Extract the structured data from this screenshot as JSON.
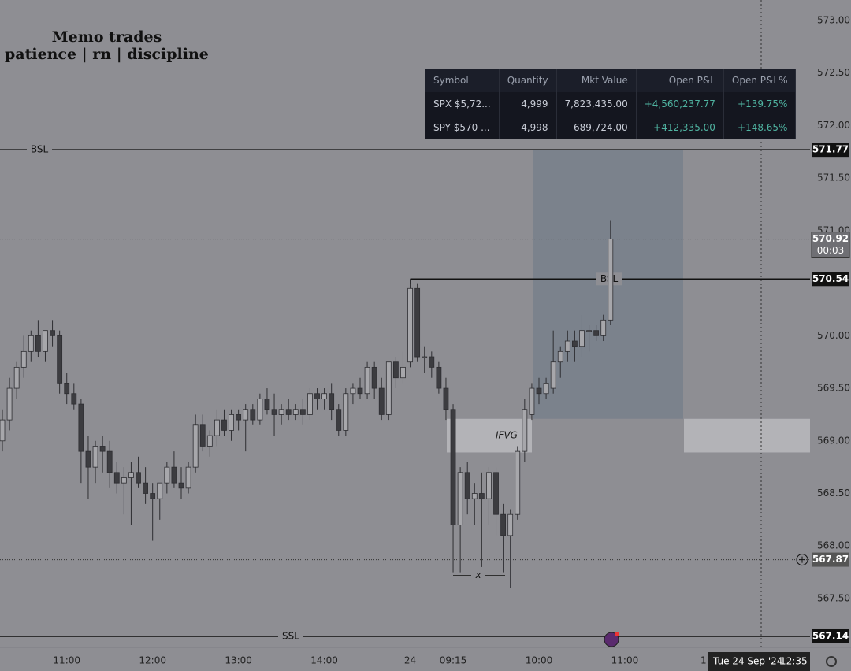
{
  "header": {
    "title": "Memo trades",
    "subtitle": "patience | rn | discipline"
  },
  "positions_table": {
    "columns": [
      "Symbol",
      "Quantity",
      "Mkt Value",
      "Open P&L",
      "Open P&L%"
    ],
    "rows": [
      [
        "SPX $5,72...",
        "4,999",
        "7,823,435.00",
        "+4,560,237.77",
        "+139.75%"
      ],
      [
        "SPY $570 ...",
        "4,998",
        "689,724.00",
        "+412,335.00",
        "+148.65%"
      ]
    ]
  },
  "chart_data": {
    "type": "candlestick",
    "candles": [
      [
        569.0,
        569.3,
        568.9,
        569.2
      ],
      [
        569.2,
        569.6,
        569.1,
        569.5
      ],
      [
        569.5,
        569.75,
        569.4,
        569.7
      ],
      [
        569.7,
        570.0,
        569.6,
        569.85
      ],
      [
        569.85,
        570.05,
        569.75,
        570.0
      ],
      [
        570.0,
        570.15,
        569.8,
        569.85
      ],
      [
        569.85,
        570.05,
        569.75,
        570.05
      ],
      [
        570.05,
        570.15,
        569.9,
        570.0
      ],
      [
        570.0,
        570.05,
        569.45,
        569.55
      ],
      [
        569.55,
        569.65,
        569.35,
        569.45
      ],
      [
        569.45,
        569.55,
        569.3,
        569.35
      ],
      [
        569.35,
        569.4,
        568.6,
        568.9
      ],
      [
        568.9,
        569.05,
        568.45,
        568.75
      ],
      [
        568.75,
        569.0,
        568.6,
        568.95
      ],
      [
        568.95,
        569.05,
        568.7,
        568.9
      ],
      [
        568.9,
        569.0,
        568.55,
        568.7
      ],
      [
        568.7,
        568.8,
        568.5,
        568.6
      ],
      [
        568.6,
        568.75,
        568.3,
        568.65
      ],
      [
        568.65,
        568.8,
        568.2,
        568.7
      ],
      [
        568.7,
        568.85,
        568.55,
        568.6
      ],
      [
        568.6,
        568.75,
        568.4,
        568.5
      ],
      [
        568.5,
        568.6,
        568.05,
        568.45
      ],
      [
        568.45,
        568.6,
        568.25,
        568.6
      ],
      [
        568.6,
        568.8,
        568.5,
        568.75
      ],
      [
        568.75,
        568.9,
        568.55,
        568.6
      ],
      [
        568.6,
        568.75,
        568.45,
        568.55
      ],
      [
        568.55,
        568.8,
        568.5,
        568.75
      ],
      [
        568.75,
        569.25,
        568.7,
        569.15
      ],
      [
        569.15,
        569.25,
        568.9,
        568.95
      ],
      [
        568.95,
        569.1,
        568.85,
        569.05
      ],
      [
        569.05,
        569.3,
        568.95,
        569.2
      ],
      [
        569.2,
        569.3,
        569.05,
        569.1
      ],
      [
        569.1,
        569.3,
        569.0,
        569.25
      ],
      [
        569.25,
        569.3,
        569.1,
        569.2
      ],
      [
        569.2,
        569.35,
        568.9,
        569.3
      ],
      [
        569.3,
        569.35,
        569.15,
        569.2
      ],
      [
        569.2,
        569.45,
        569.15,
        569.4
      ],
      [
        569.4,
        569.5,
        569.25,
        569.3
      ],
      [
        569.3,
        569.45,
        569.05,
        569.25
      ],
      [
        569.25,
        569.35,
        569.15,
        569.3
      ],
      [
        569.3,
        569.4,
        569.2,
        569.25
      ],
      [
        569.25,
        569.35,
        569.2,
        569.3
      ],
      [
        569.3,
        569.4,
        569.15,
        569.25
      ],
      [
        569.25,
        569.5,
        569.2,
        569.45
      ],
      [
        569.45,
        569.5,
        569.3,
        569.4
      ],
      [
        569.4,
        569.5,
        569.3,
        569.45
      ],
      [
        569.45,
        569.55,
        569.2,
        569.3
      ],
      [
        569.3,
        569.35,
        569.05,
        569.1
      ],
      [
        569.1,
        569.5,
        569.05,
        569.45
      ],
      [
        569.45,
        569.55,
        569.35,
        569.5
      ],
      [
        569.5,
        569.6,
        569.4,
        569.45
      ],
      [
        569.45,
        569.75,
        569.4,
        569.7
      ],
      [
        569.7,
        569.75,
        569.4,
        569.5
      ],
      [
        569.5,
        569.6,
        569.2,
        569.25
      ],
      [
        569.25,
        569.75,
        569.2,
        569.75
      ],
      [
        569.75,
        569.8,
        569.5,
        569.6
      ],
      [
        569.6,
        569.85,
        569.55,
        569.7
      ],
      [
        569.75,
        570.54,
        569.7,
        570.45
      ],
      [
        570.45,
        570.5,
        569.75,
        569.8
      ],
      [
        569.8,
        569.9,
        569.65,
        569.8
      ],
      [
        569.8,
        569.85,
        569.6,
        569.7
      ],
      [
        569.7,
        569.75,
        569.45,
        569.5
      ],
      [
        569.5,
        569.6,
        569.2,
        569.3
      ],
      [
        569.3,
        569.35,
        567.75,
        568.2
      ],
      [
        568.2,
        568.75,
        567.75,
        568.7
      ],
      [
        568.7,
        568.8,
        568.3,
        568.45
      ],
      [
        568.45,
        568.6,
        568.2,
        568.5
      ],
      [
        568.5,
        568.7,
        567.8,
        568.45
      ],
      [
        568.45,
        568.75,
        568.2,
        568.7
      ],
      [
        568.7,
        568.75,
        568.1,
        568.3
      ],
      [
        568.3,
        568.4,
        567.75,
        568.1
      ],
      [
        568.1,
        568.35,
        567.6,
        568.3
      ],
      [
        568.3,
        568.95,
        568.25,
        568.9
      ],
      [
        568.9,
        569.4,
        568.8,
        569.3
      ],
      [
        569.25,
        569.55,
        569.2,
        569.5
      ],
      [
        569.5,
        569.6,
        569.35,
        569.45
      ],
      [
        569.45,
        569.6,
        569.4,
        569.55
      ],
      [
        569.5,
        570.05,
        569.45,
        569.75
      ],
      [
        569.75,
        569.9,
        569.6,
        569.85
      ],
      [
        569.85,
        570.05,
        569.75,
        569.95
      ],
      [
        569.95,
        570.05,
        569.75,
        569.9
      ],
      [
        569.9,
        570.2,
        569.8,
        570.05
      ],
      [
        570.05,
        570.1,
        569.85,
        570.05
      ],
      [
        570.05,
        570.1,
        569.95,
        570.0
      ],
      [
        570.0,
        570.2,
        569.95,
        570.15
      ],
      [
        570.15,
        571.1,
        570.1,
        570.92
      ]
    ],
    "up_color": "#a7a7ab",
    "down_color": "#3c3c40",
    "ylim": [
      567.035,
      573.195
    ],
    "yticks": [
      {
        "value": 573.0,
        "label": "573.00"
      },
      {
        "value": 572.5,
        "label": "572.50"
      },
      {
        "value": 572.0,
        "label": "572.00"
      },
      {
        "value": 571.5,
        "label": "571.50"
      },
      {
        "value": 571.0,
        "label": "571.00"
      },
      {
        "value": 570.0,
        "label": "570.00"
      },
      {
        "value": 569.5,
        "label": "569.50"
      },
      {
        "value": 569.0,
        "label": "569.00"
      },
      {
        "value": 568.5,
        "label": "568.50"
      },
      {
        "value": 568.0,
        "label": "568.00"
      },
      {
        "value": 567.5,
        "label": "567.50"
      }
    ],
    "xticks": [
      {
        "value": 9,
        "label": "11:00"
      },
      {
        "value": 21,
        "label": "12:00"
      },
      {
        "value": 33,
        "label": "13:00"
      },
      {
        "value": 45,
        "label": "14:00"
      },
      {
        "value": 57,
        "label": "24"
      },
      {
        "value": 63,
        "label": "09:15"
      },
      {
        "value": 75,
        "label": "10:00"
      },
      {
        "value": 87,
        "label": "11:00"
      },
      {
        "value": 98,
        "label": "1"
      }
    ],
    "levels": [
      {
        "label": "BSL",
        "value": 571.77
      },
      {
        "label": "BSL",
        "value": 570.54
      },
      {
        "label": "SSL",
        "value": 567.14
      }
    ],
    "last_price": {
      "value": 570.92,
      "countdown": "00:03"
    },
    "crosshair_price": 567.87,
    "zone": {
      "label": "IFVG",
      "top": 569.21,
      "bottom": 568.89
    },
    "annotation": {
      "label": "x",
      "value": 567.72
    },
    "date_label": "Tue 24 Sep '24",
    "time_label": "12:35"
  }
}
